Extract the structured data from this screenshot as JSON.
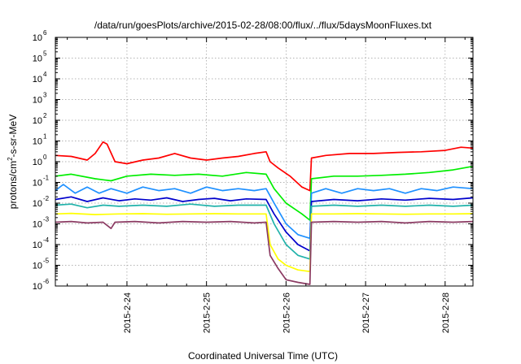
{
  "chart_data": {
    "type": "line",
    "title": "/data/run/goesPlots/archive/2015-02-28/08:00/flux/../flux/5daysMoonFluxes.txt",
    "xlabel": "Coordinated Universal Time (UTC)",
    "ylabel": "protons/cm²-s-sr-MeV",
    "ylabel_parts": [
      "protons/cm",
      "2",
      "-s-sr-MeV"
    ],
    "yscale": "log",
    "ylim_exp": [
      -6,
      6
    ],
    "y_ticks": [
      {
        "base": "10",
        "exp": "-6"
      },
      {
        "base": "10",
        "exp": "-5"
      },
      {
        "base": "10",
        "exp": "-4"
      },
      {
        "base": "10",
        "exp": "-3"
      },
      {
        "base": "10",
        "exp": "-2"
      },
      {
        "base": "10",
        "exp": "-1"
      },
      {
        "base": "10",
        "exp": "0"
      },
      {
        "base": "10",
        "exp": "1"
      },
      {
        "base": "10",
        "exp": "2"
      },
      {
        "base": "10",
        "exp": "3"
      },
      {
        "base": "10",
        "exp": "4"
      },
      {
        "base": "10",
        "exp": "5"
      },
      {
        "base": "10",
        "exp": "6"
      }
    ],
    "x_unit": "day",
    "xlim": [
      23.1,
      28.35
    ],
    "x_ticks": [
      {
        "label": "2015-2-24",
        "x": 24
      },
      {
        "label": "2015-2-25",
        "x": 25
      },
      {
        "label": "2015-2-26",
        "x": 26
      },
      {
        "label": "2015-2-27",
        "x": 27
      },
      {
        "label": "2015-2-28",
        "x": 28
      }
    ],
    "grid": true,
    "legend": "none",
    "series": [
      {
        "color": "#ff0000",
        "points": [
          [
            23.1,
            2.0
          ],
          [
            23.3,
            1.8
          ],
          [
            23.5,
            1.2
          ],
          [
            23.6,
            2.5
          ],
          [
            23.7,
            9.0
          ],
          [
            23.75,
            7.0
          ],
          [
            23.85,
            1.0
          ],
          [
            24.0,
            0.8
          ],
          [
            24.2,
            1.2
          ],
          [
            24.4,
            1.5
          ],
          [
            24.6,
            2.5
          ],
          [
            24.8,
            1.5
          ],
          [
            25.0,
            1.2
          ],
          [
            25.2,
            1.5
          ],
          [
            25.4,
            1.8
          ],
          [
            25.6,
            2.5
          ],
          [
            25.75,
            3.0
          ],
          [
            25.8,
            1.0
          ],
          [
            25.9,
            0.5
          ],
          [
            26.05,
            0.2
          ],
          [
            26.2,
            0.06
          ],
          [
            26.3,
            0.04
          ],
          [
            26.32,
            1.5
          ],
          [
            26.5,
            2.0
          ],
          [
            26.8,
            2.5
          ],
          [
            27.1,
            2.5
          ],
          [
            27.4,
            2.8
          ],
          [
            27.7,
            3.0
          ],
          [
            28.0,
            3.5
          ],
          [
            28.2,
            5.0
          ],
          [
            28.35,
            4.5
          ]
        ]
      },
      {
        "color": "#00ee00",
        "points": [
          [
            23.1,
            0.2
          ],
          [
            23.3,
            0.25
          ],
          [
            23.6,
            0.15
          ],
          [
            23.8,
            0.12
          ],
          [
            24.0,
            0.2
          ],
          [
            24.3,
            0.25
          ],
          [
            24.6,
            0.22
          ],
          [
            24.9,
            0.25
          ],
          [
            25.2,
            0.2
          ],
          [
            25.5,
            0.3
          ],
          [
            25.75,
            0.25
          ],
          [
            25.85,
            0.05
          ],
          [
            26.0,
            0.01
          ],
          [
            26.2,
            0.003
          ],
          [
            26.3,
            0.0015
          ],
          [
            26.32,
            0.15
          ],
          [
            26.6,
            0.2
          ],
          [
            26.9,
            0.2
          ],
          [
            27.2,
            0.22
          ],
          [
            27.5,
            0.25
          ],
          [
            27.8,
            0.3
          ],
          [
            28.1,
            0.4
          ],
          [
            28.35,
            0.6
          ]
        ]
      },
      {
        "color": "#1e90ff",
        "points": [
          [
            23.1,
            0.04
          ],
          [
            23.2,
            0.08
          ],
          [
            23.35,
            0.03
          ],
          [
            23.5,
            0.06
          ],
          [
            23.65,
            0.03
          ],
          [
            23.8,
            0.05
          ],
          [
            24.0,
            0.03
          ],
          [
            24.2,
            0.06
          ],
          [
            24.4,
            0.04
          ],
          [
            24.6,
            0.05
          ],
          [
            24.8,
            0.03
          ],
          [
            25.0,
            0.06
          ],
          [
            25.2,
            0.04
          ],
          [
            25.4,
            0.05
          ],
          [
            25.6,
            0.04
          ],
          [
            25.75,
            0.05
          ],
          [
            25.85,
            0.01
          ],
          [
            26.0,
            0.001
          ],
          [
            26.15,
            0.0003
          ],
          [
            26.3,
            0.0002
          ],
          [
            26.32,
            0.03
          ],
          [
            26.5,
            0.05
          ],
          [
            26.7,
            0.03
          ],
          [
            26.9,
            0.05
          ],
          [
            27.1,
            0.04
          ],
          [
            27.3,
            0.05
          ],
          [
            27.5,
            0.03
          ],
          [
            27.7,
            0.05
          ],
          [
            27.9,
            0.04
          ],
          [
            28.1,
            0.06
          ],
          [
            28.35,
            0.05
          ]
        ]
      },
      {
        "color": "#0000cc",
        "points": [
          [
            23.1,
            0.015
          ],
          [
            23.3,
            0.02
          ],
          [
            23.5,
            0.012
          ],
          [
            23.7,
            0.018
          ],
          [
            23.9,
            0.013
          ],
          [
            24.1,
            0.016
          ],
          [
            24.3,
            0.014
          ],
          [
            24.5,
            0.018
          ],
          [
            24.7,
            0.012
          ],
          [
            24.9,
            0.015
          ],
          [
            25.1,
            0.017
          ],
          [
            25.3,
            0.013
          ],
          [
            25.5,
            0.016
          ],
          [
            25.75,
            0.015
          ],
          [
            25.85,
            0.003
          ],
          [
            26.0,
            0.0004
          ],
          [
            26.15,
            0.0001
          ],
          [
            26.3,
            5e-05
          ],
          [
            26.32,
            0.012
          ],
          [
            26.6,
            0.015
          ],
          [
            26.9,
            0.013
          ],
          [
            27.2,
            0.016
          ],
          [
            27.5,
            0.014
          ],
          [
            27.8,
            0.017
          ],
          [
            28.1,
            0.015
          ],
          [
            28.35,
            0.018
          ]
        ]
      },
      {
        "color": "#20b2aa",
        "points": [
          [
            23.1,
            0.008
          ],
          [
            23.3,
            0.009
          ],
          [
            23.5,
            0.006
          ],
          [
            23.7,
            0.008
          ],
          [
            23.9,
            0.007
          ],
          [
            24.2,
            0.008
          ],
          [
            24.5,
            0.007
          ],
          [
            24.8,
            0.009
          ],
          [
            25.1,
            0.007
          ],
          [
            25.4,
            0.008
          ],
          [
            25.75,
            0.008
          ],
          [
            25.85,
            0.001
          ],
          [
            26.0,
            0.0001
          ],
          [
            26.15,
            3e-05
          ],
          [
            26.3,
            2e-05
          ],
          [
            26.32,
            0.007
          ],
          [
            26.6,
            0.008
          ],
          [
            26.9,
            0.007
          ],
          [
            27.2,
            0.008
          ],
          [
            27.5,
            0.007
          ],
          [
            27.8,
            0.008
          ],
          [
            28.1,
            0.007
          ],
          [
            28.35,
            0.008
          ]
        ]
      },
      {
        "color": "#ffff00",
        "points": [
          [
            23.1,
            0.003
          ],
          [
            23.3,
            0.0032
          ],
          [
            23.6,
            0.0028
          ],
          [
            23.9,
            0.003
          ],
          [
            24.2,
            0.0031
          ],
          [
            24.5,
            0.0029
          ],
          [
            24.8,
            0.003
          ],
          [
            25.1,
            0.0031
          ],
          [
            25.4,
            0.003
          ],
          [
            25.75,
            0.003
          ],
          [
            25.8,
            0.0001
          ],
          [
            25.9,
            2e-05
          ],
          [
            26.0,
            1e-05
          ],
          [
            26.15,
            6e-06
          ],
          [
            26.3,
            5e-06
          ],
          [
            26.32,
            0.003
          ],
          [
            26.6,
            0.003
          ],
          [
            26.9,
            0.0031
          ],
          [
            27.2,
            0.003
          ],
          [
            27.5,
            0.0029
          ],
          [
            27.8,
            0.003
          ],
          [
            28.1,
            0.003
          ],
          [
            28.35,
            0.0031
          ]
        ]
      },
      {
        "color": "#8b3a62",
        "points": [
          [
            23.1,
            0.0012
          ],
          [
            23.3,
            0.0013
          ],
          [
            23.5,
            0.0011
          ],
          [
            23.7,
            0.0012
          ],
          [
            23.8,
            0.0006
          ],
          [
            23.85,
            0.0012
          ],
          [
            24.1,
            0.0013
          ],
          [
            24.4,
            0.0011
          ],
          [
            24.7,
            0.0013
          ],
          [
            25.0,
            0.0012
          ],
          [
            25.3,
            0.0013
          ],
          [
            25.6,
            0.0011
          ],
          [
            25.75,
            0.0012
          ],
          [
            25.8,
            3e-05
          ],
          [
            25.9,
            7e-06
          ],
          [
            26.0,
            2e-06
          ],
          [
            26.15,
            1.5e-06
          ],
          [
            26.3,
            1.2e-06
          ],
          [
            26.32,
            0.0012
          ],
          [
            26.6,
            0.0013
          ],
          [
            26.9,
            0.0012
          ],
          [
            27.2,
            0.0013
          ],
          [
            27.5,
            0.0011
          ],
          [
            27.8,
            0.0013
          ],
          [
            28.1,
            0.0012
          ],
          [
            28.35,
            0.0013
          ]
        ]
      }
    ]
  }
}
